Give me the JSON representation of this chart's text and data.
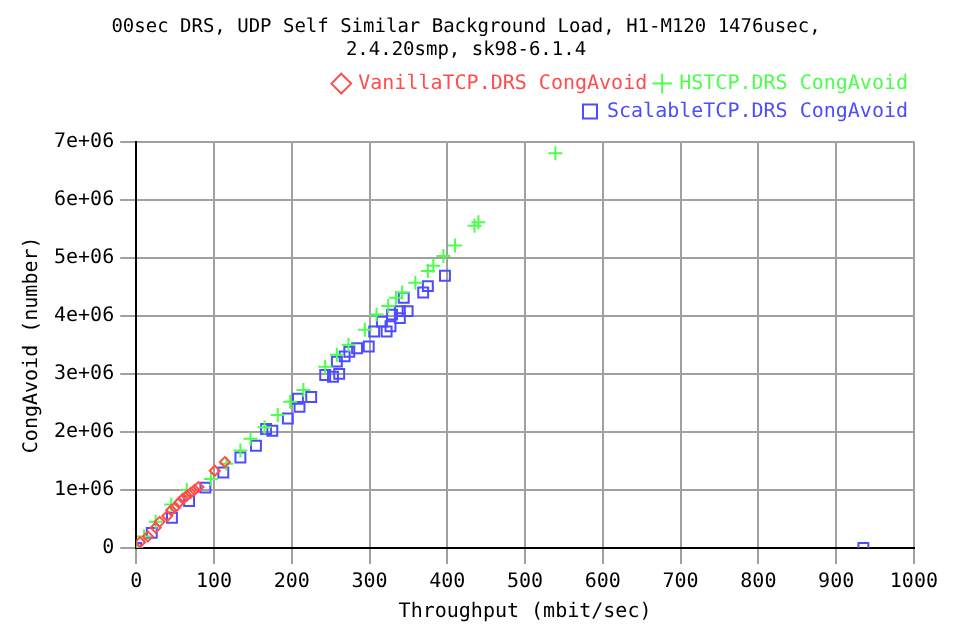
{
  "chart_data": {
    "type": "scatter",
    "title": "00sec DRS, UDP Self Similar Background Load, H1-M120 1476usec,\n2.4.20smp, sk98-6.1.4",
    "xlabel": "Throughput (mbit/sec)",
    "ylabel": "CongAvoid (number)",
    "xlim": [
      0,
      1000
    ],
    "xticks": [
      0,
      100,
      200,
      300,
      400,
      500,
      600,
      700,
      800,
      900,
      1000
    ],
    "ylim": [
      0,
      7000000
    ],
    "yticks": [
      0,
      {
        "value": 1000000,
        "label": "1e+06"
      },
      {
        "value": 2000000,
        "label": "2e+06"
      },
      {
        "value": 3000000,
        "label": "3e+06"
      },
      {
        "value": 4000000,
        "label": "4e+06"
      },
      {
        "value": 5000000,
        "label": "5e+06"
      },
      {
        "value": 6000000,
        "label": "6e+06"
      },
      {
        "value": 7000000,
        "label": "7e+06"
      }
    ],
    "grid": true,
    "legend": "top right",
    "series": [
      {
        "name": "VanillaTCP.DRS CongAvoid",
        "color": "#ff4d4d",
        "marker": "diamond",
        "x": [
          0,
          5,
          15,
          25,
          30,
          40,
          45,
          50,
          55,
          60,
          65,
          70,
          75,
          80,
          101,
          114
        ],
        "values": [
          0,
          100000,
          200000,
          350000,
          450000,
          550000,
          650000,
          700000,
          780000,
          850000,
          900000,
          950000,
          1000000,
          1050000,
          1330000,
          1480000
        ]
      },
      {
        "name": "HSTCP.DRS CongAvoid",
        "color": "#4dff4d",
        "marker": "cross",
        "x": [
          0,
          10,
          25,
          45,
          65,
          96,
          116,
          134,
          147,
          165,
          182,
          198,
          215,
          243,
          258,
          273,
          294,
          309,
          324,
          334,
          342,
          359,
          375,
          382,
          395,
          410,
          435,
          440,
          539
        ],
        "values": [
          0,
          200000,
          450000,
          750000,
          1000000,
          1190000,
          1450000,
          1680000,
          1880000,
          2080000,
          2290000,
          2520000,
          2720000,
          3120000,
          3330000,
          3500000,
          3760000,
          4020000,
          4170000,
          4310000,
          4400000,
          4570000,
          4770000,
          4860000,
          5030000,
          5210000,
          5550000,
          5610000,
          6800000
        ]
      },
      {
        "name": "ScalableTCP.DRS CongAvoid",
        "color": "#4d4dff",
        "marker": "square",
        "x": [
          0,
          20,
          46,
          68,
          89,
          112,
          134,
          154,
          167,
          175,
          195,
          208,
          210,
          225,
          243,
          253,
          261,
          258,
          268,
          274,
          284,
          299,
          306,
          316,
          322,
          327,
          329,
          339,
          339,
          349,
          344,
          369,
          375,
          397,
          935
        ],
        "values": [
          0,
          260000,
          520000,
          810000,
          1040000,
          1300000,
          1560000,
          1760000,
          2050000,
          2020000,
          2230000,
          2570000,
          2430000,
          2600000,
          2980000,
          2950000,
          3000000,
          3210000,
          3300000,
          3380000,
          3440000,
          3470000,
          3730000,
          3900000,
          3730000,
          3820000,
          4020000,
          3960000,
          4080000,
          4080000,
          4310000,
          4400000,
          4510000,
          4690000,
          0
        ]
      }
    ]
  }
}
